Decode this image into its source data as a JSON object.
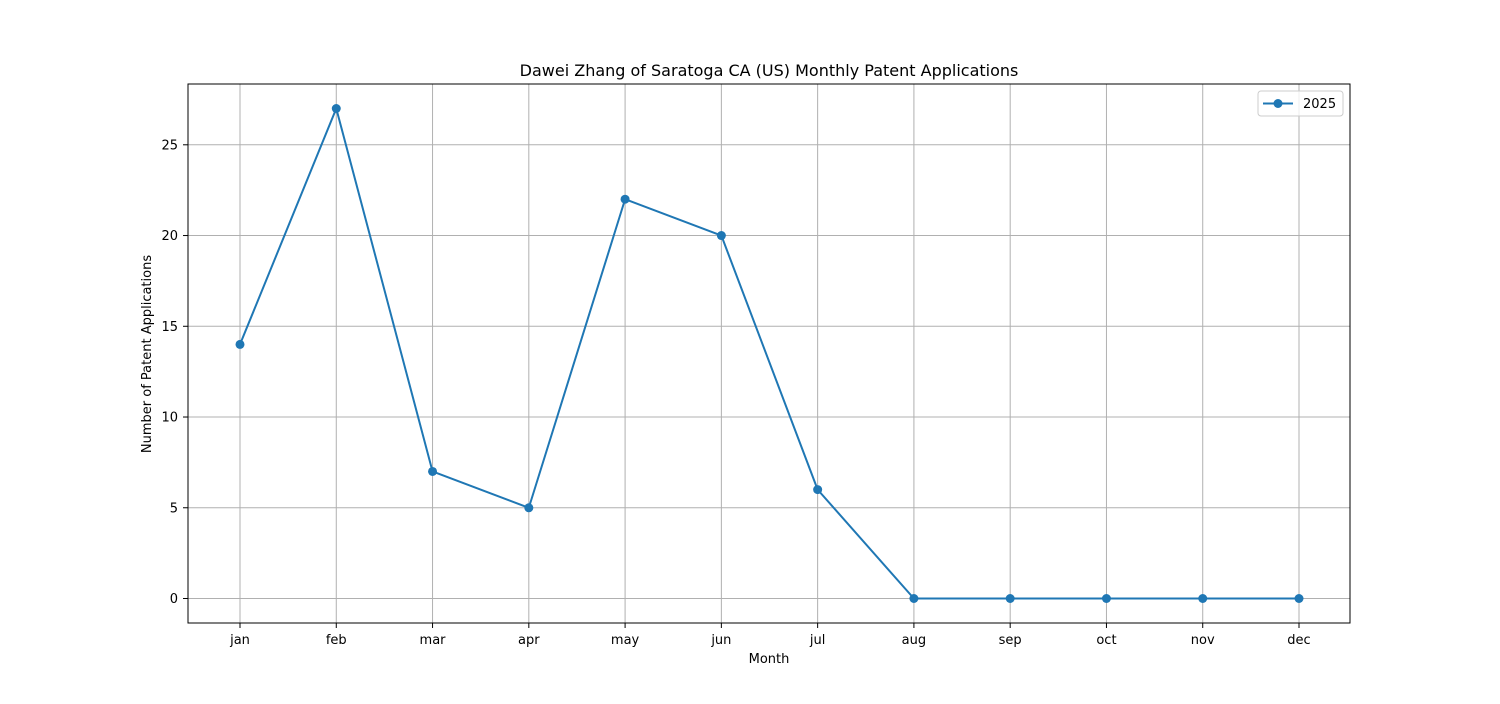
{
  "chart_data": {
    "type": "line",
    "title": "Dawei Zhang of Saratoga CA (US) Monthly Patent Applications",
    "xlabel": "Month",
    "ylabel": "Number of Patent Applications",
    "categories": [
      "jan",
      "feb",
      "mar",
      "apr",
      "may",
      "jun",
      "jul",
      "aug",
      "sep",
      "oct",
      "nov",
      "dec"
    ],
    "series": [
      {
        "name": "2025",
        "values": [
          14,
          27,
          7,
          5,
          22,
          20,
          6,
          0,
          0,
          0,
          0,
          0
        ],
        "color": "#1f77b4",
        "marker": "circle"
      }
    ],
    "ylim": [
      -1.35,
      28.35
    ],
    "yticks": [
      0,
      5,
      10,
      15,
      20,
      25
    ],
    "grid": true,
    "legend_position": "top-right"
  }
}
